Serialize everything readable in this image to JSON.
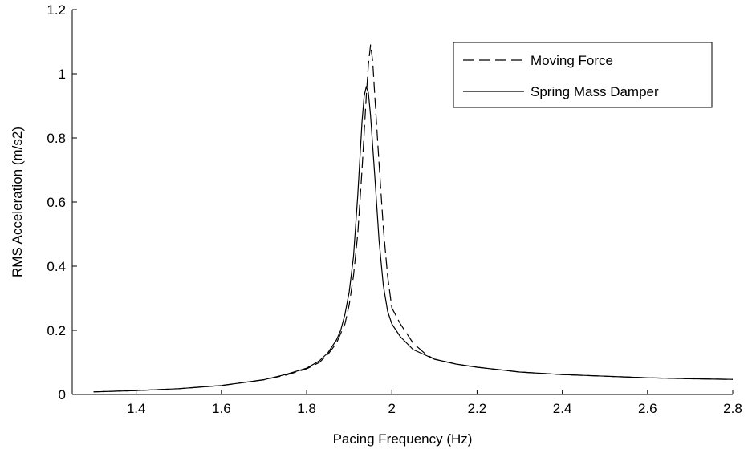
{
  "chart_data": {
    "type": "line",
    "title": "",
    "xlabel": "Pacing Frequency (Hz)",
    "ylabel": "RMS Acceleration (m/s2)",
    "xlim": [
      1.25,
      2.8
    ],
    "ylim": [
      0,
      1.2
    ],
    "xticks": [
      1.4,
      1.6,
      1.8,
      2,
      2.2,
      2.4,
      2.6,
      2.8
    ],
    "xtick_labels": [
      "1.4",
      "1.6",
      "1.8",
      "2",
      "2.2",
      "2.4",
      "2.6",
      "2.8"
    ],
    "yticks": [
      0,
      0.2,
      0.4,
      0.6,
      0.8,
      1,
      1.2
    ],
    "ytick_labels": [
      "0",
      "0.2",
      "0.4",
      "0.6",
      "0.8",
      "1",
      "1.2"
    ],
    "grid": false,
    "legend_position": "top-right",
    "series": [
      {
        "name": "Moving Force",
        "style": "dashed",
        "color": "#000000",
        "x": [
          1.3,
          1.4,
          1.5,
          1.6,
          1.7,
          1.75,
          1.8,
          1.83,
          1.85,
          1.87,
          1.89,
          1.9,
          1.91,
          1.92,
          1.93,
          1.94,
          1.945,
          1.95,
          1.955,
          1.96,
          1.97,
          1.98,
          1.99,
          2.0,
          2.02,
          2.05,
          2.08,
          2.1,
          2.15,
          2.2,
          2.3,
          2.4,
          2.5,
          2.6,
          2.7,
          2.8
        ],
        "y": [
          0.008,
          0.012,
          0.018,
          0.028,
          0.046,
          0.06,
          0.08,
          0.1,
          0.125,
          0.16,
          0.22,
          0.28,
          0.37,
          0.5,
          0.7,
          0.93,
          1.03,
          1.09,
          1.04,
          0.93,
          0.72,
          0.52,
          0.37,
          0.27,
          0.22,
          0.16,
          0.125,
          0.11,
          0.095,
          0.085,
          0.07,
          0.062,
          0.057,
          0.052,
          0.049,
          0.047
        ]
      },
      {
        "name": "Spring Mass Damper",
        "style": "solid",
        "color": "#000000",
        "x": [
          1.3,
          1.4,
          1.5,
          1.6,
          1.7,
          1.75,
          1.8,
          1.83,
          1.85,
          1.87,
          1.88,
          1.89,
          1.9,
          1.91,
          1.92,
          1.93,
          1.935,
          1.94,
          1.945,
          1.95,
          1.96,
          1.97,
          1.98,
          1.99,
          2.0,
          2.02,
          2.05,
          2.1,
          2.15,
          2.2,
          2.3,
          2.4,
          2.5,
          2.6,
          2.7,
          2.8
        ],
        "y": [
          0.008,
          0.012,
          0.018,
          0.028,
          0.046,
          0.062,
          0.082,
          0.105,
          0.13,
          0.17,
          0.2,
          0.25,
          0.32,
          0.43,
          0.62,
          0.85,
          0.93,
          0.96,
          0.94,
          0.87,
          0.68,
          0.48,
          0.34,
          0.26,
          0.22,
          0.18,
          0.14,
          0.11,
          0.095,
          0.085,
          0.07,
          0.062,
          0.057,
          0.052,
          0.049,
          0.047
        ]
      }
    ]
  }
}
